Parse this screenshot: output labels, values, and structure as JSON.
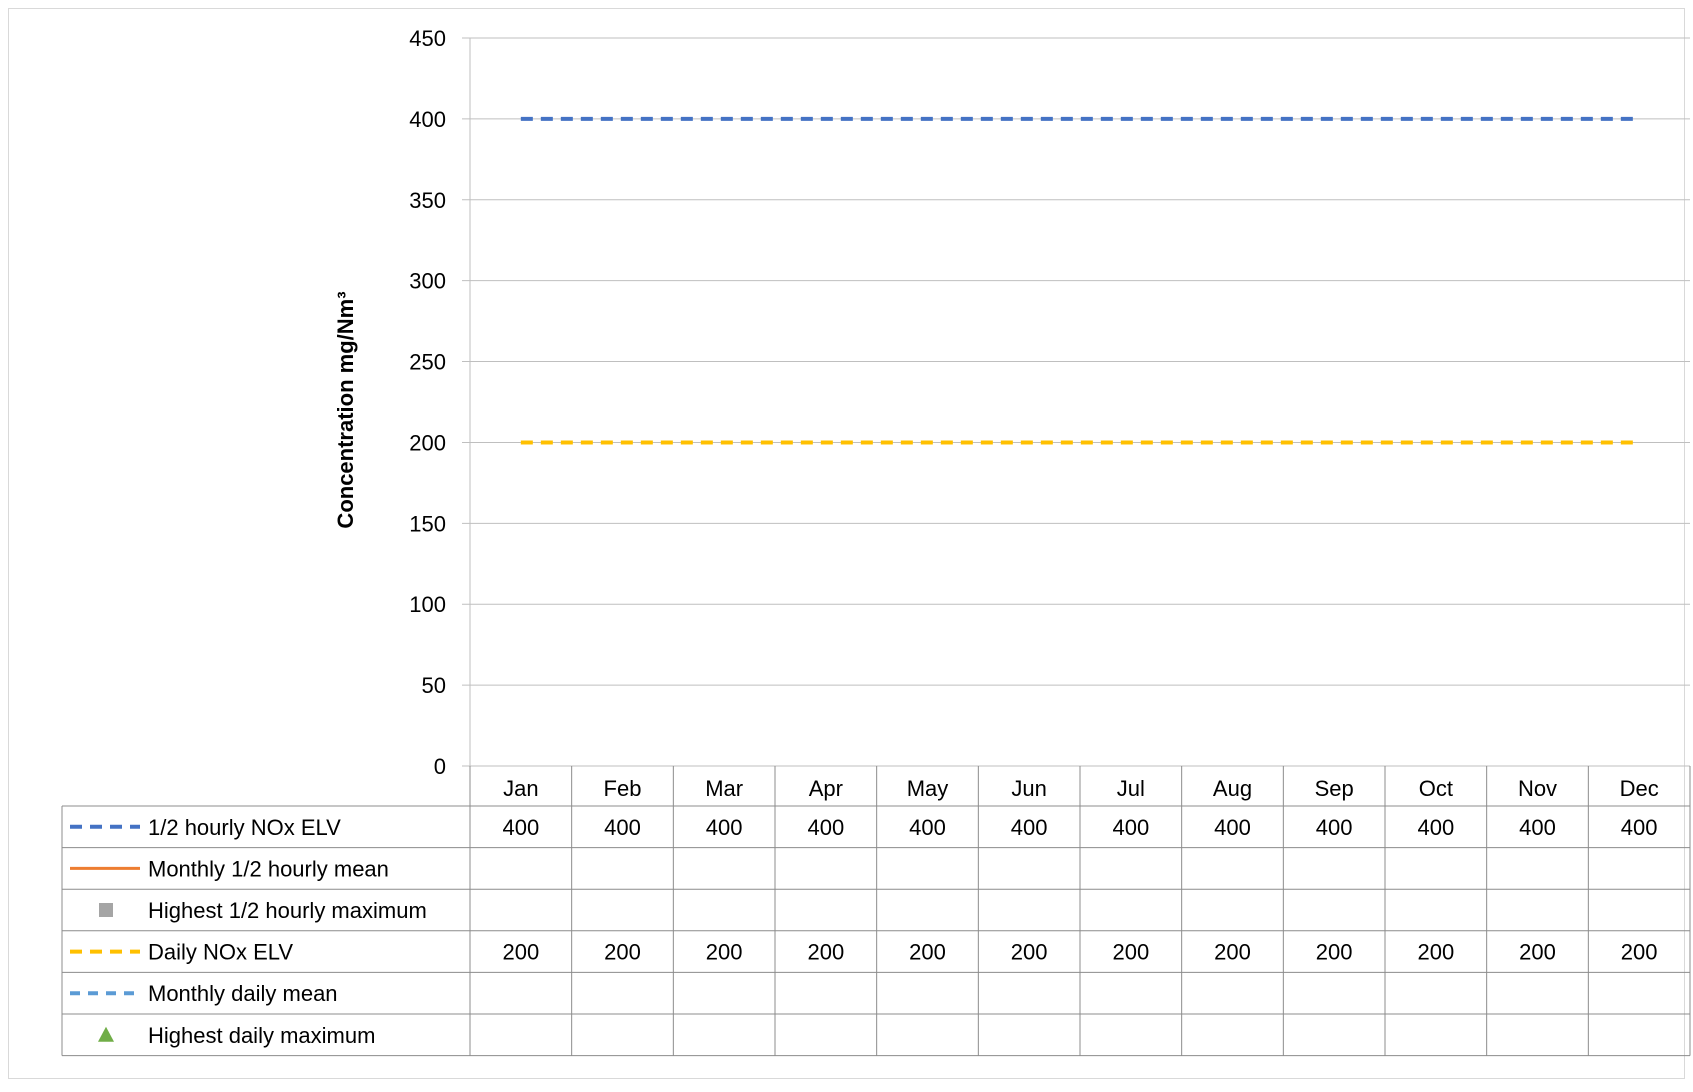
{
  "chart_data": {
    "type": "line",
    "title": "",
    "xlabel": "",
    "ylabel": "Concentration mg/Nm³",
    "ylim": [
      0,
      450
    ],
    "yticks": [
      0,
      50,
      100,
      150,
      200,
      250,
      300,
      350,
      400,
      450
    ],
    "grid": true,
    "legend": "data-table",
    "categories": [
      "Jan",
      "Feb",
      "Mar",
      "Apr",
      "May",
      "Jun",
      "Jul",
      "Aug",
      "Sep",
      "Oct",
      "Nov",
      "Dec"
    ],
    "series": [
      {
        "name": "1/2 hourly NOx ELV",
        "values": [
          400,
          400,
          400,
          400,
          400,
          400,
          400,
          400,
          400,
          400,
          400,
          400
        ],
        "color": "#4472C4",
        "style": "dashed",
        "marker": "line"
      },
      {
        "name": "Monthly 1/2 hourly mean",
        "values": [
          null,
          null,
          null,
          null,
          null,
          null,
          null,
          null,
          null,
          null,
          null,
          null
        ],
        "color": "#ED7D31",
        "style": "solid",
        "marker": "line"
      },
      {
        "name": "Highest 1/2 hourly maximum",
        "values": [
          null,
          null,
          null,
          null,
          null,
          null,
          null,
          null,
          null,
          null,
          null,
          null
        ],
        "color": "#A5A5A5",
        "style": "none",
        "marker": "square"
      },
      {
        "name": "Daily NOx ELV",
        "values": [
          200,
          200,
          200,
          200,
          200,
          200,
          200,
          200,
          200,
          200,
          200,
          200
        ],
        "color": "#FFC000",
        "style": "dashed",
        "marker": "line"
      },
      {
        "name": "Monthly daily mean",
        "values": [
          null,
          null,
          null,
          null,
          null,
          null,
          null,
          null,
          null,
          null,
          null,
          null
        ],
        "color": "#5B9BD5",
        "style": "dashed",
        "marker": "line"
      },
      {
        "name": "Highest daily maximum",
        "values": [
          null,
          null,
          null,
          null,
          null,
          null,
          null,
          null,
          null,
          null,
          null,
          null
        ],
        "color": "#70AD47",
        "style": "none",
        "marker": "triangle"
      }
    ]
  }
}
